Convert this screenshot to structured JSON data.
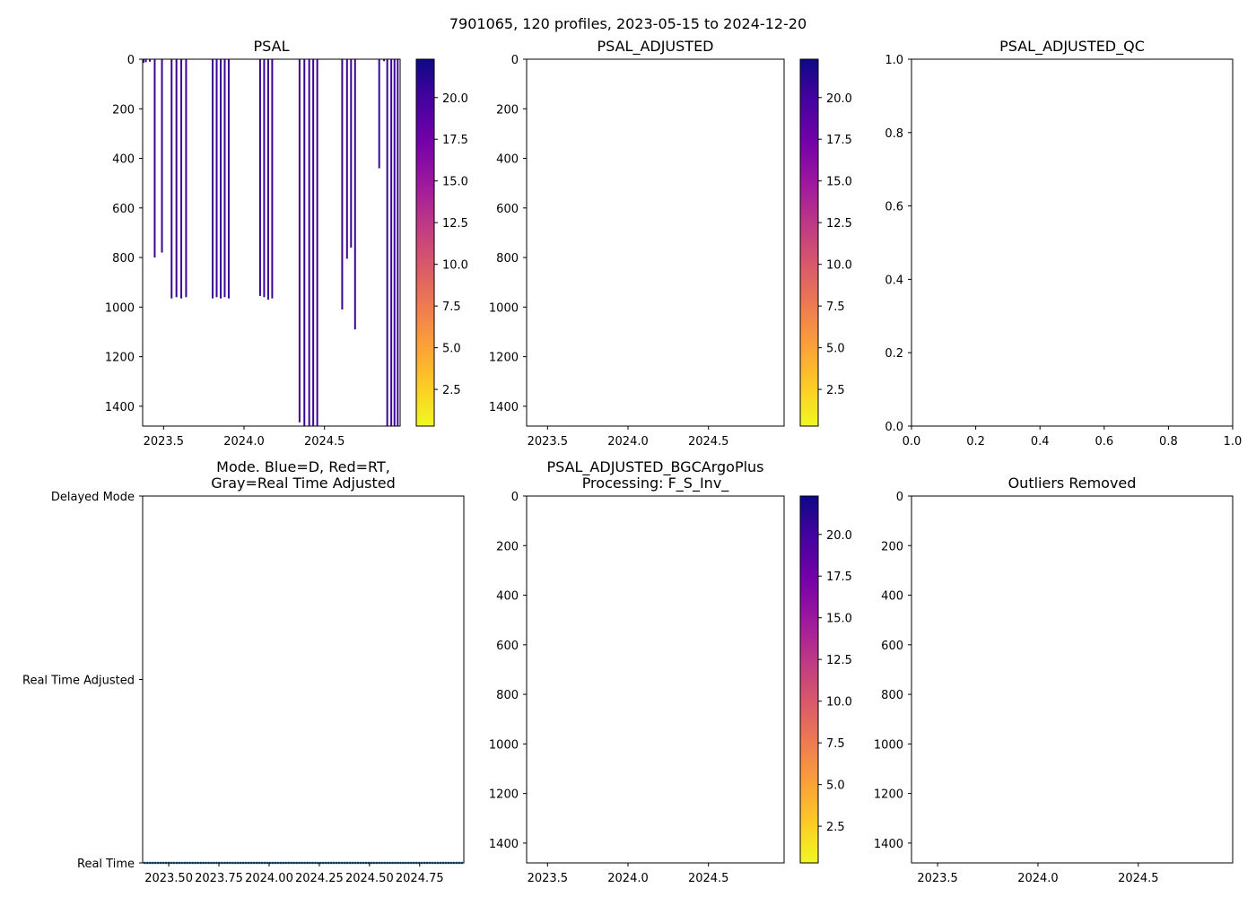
{
  "suptitle": "7901065, 120 profiles, 2023-05-15 to 2024-12-20",
  "colorbar": {
    "ticks": [
      2.5,
      5.0,
      7.5,
      10.0,
      12.5,
      15.0,
      17.5,
      20.0
    ],
    "range": [
      0.3,
      22.3
    ],
    "colormap": "plasma_r",
    "colors": [
      "#f0f921",
      "#fdca26",
      "#fb9f3a",
      "#ed7953",
      "#d8576b",
      "#bd3786",
      "#9c179e",
      "#7201a8",
      "#46039f",
      "#0d0887"
    ]
  },
  "chart_data": [
    {
      "id": "psal",
      "type": "heatmap",
      "title": "PSAL",
      "xlim": [
        2023.37,
        2024.97
      ],
      "ylim": [
        1480,
        0
      ],
      "xticks": [
        "2023.5",
        "2024.0",
        "2024.5"
      ],
      "yticks": [
        "0",
        "200",
        "400",
        "600",
        "800",
        "1000",
        "1200",
        "1400"
      ],
      "colorbar": true,
      "profile_color": "#3b0593",
      "profiles": [
        {
          "x": 2023.375,
          "depth": 15
        },
        {
          "x": 2023.39,
          "depth": 12
        },
        {
          "x": 2023.415,
          "depth": 10
        },
        {
          "x": 2023.445,
          "depth": 800
        },
        {
          "x": 2023.49,
          "depth": 780
        },
        {
          "x": 2023.55,
          "depth": 965
        },
        {
          "x": 2023.58,
          "depth": 960
        },
        {
          "x": 2023.61,
          "depth": 965
        },
        {
          "x": 2023.64,
          "depth": 960
        },
        {
          "x": 2023.805,
          "depth": 965
        },
        {
          "x": 2023.83,
          "depth": 960
        },
        {
          "x": 2023.855,
          "depth": 965
        },
        {
          "x": 2023.88,
          "depth": 960
        },
        {
          "x": 2023.905,
          "depth": 965
        },
        {
          "x": 2024.1,
          "depth": 955
        },
        {
          "x": 2024.125,
          "depth": 960
        },
        {
          "x": 2024.15,
          "depth": 970
        },
        {
          "x": 2024.175,
          "depth": 965
        },
        {
          "x": 2024.345,
          "depth": 1465
        },
        {
          "x": 2024.375,
          "depth": 1480
        },
        {
          "x": 2024.405,
          "depth": 1480
        },
        {
          "x": 2024.43,
          "depth": 1480
        },
        {
          "x": 2024.455,
          "depth": 1480
        },
        {
          "x": 2024.61,
          "depth": 1010
        },
        {
          "x": 2024.64,
          "depth": 805
        },
        {
          "x": 2024.665,
          "depth": 760
        },
        {
          "x": 2024.69,
          "depth": 1090
        },
        {
          "x": 2024.84,
          "depth": 440
        },
        {
          "x": 2024.87,
          "depth": 8
        },
        {
          "x": 2024.89,
          "depth": 1480
        },
        {
          "x": 2024.915,
          "depth": 1480
        },
        {
          "x": 2024.935,
          "depth": 1480
        },
        {
          "x": 2024.955,
          "depth": 1480
        }
      ]
    },
    {
      "id": "psal_adjusted",
      "type": "heatmap",
      "title": "PSAL_ADJUSTED",
      "xlim": [
        2023.37,
        2024.97
      ],
      "ylim": [
        1480,
        0
      ],
      "xticks": [
        "2023.5",
        "2024.0",
        "2024.5"
      ],
      "yticks": [
        "0",
        "200",
        "400",
        "600",
        "800",
        "1000",
        "1200",
        "1400"
      ],
      "colorbar": true,
      "profiles": []
    },
    {
      "id": "psal_adjusted_qc",
      "type": "scatter",
      "title": "PSAL_ADJUSTED_QC",
      "xlim": [
        0,
        1
      ],
      "ylim": [
        0,
        1
      ],
      "xticks": [
        "0.0",
        "0.2",
        "0.4",
        "0.6",
        "0.8",
        "1.0"
      ],
      "yticks": [
        "0.0",
        "0.2",
        "0.4",
        "0.6",
        "0.8",
        "1.0"
      ],
      "colorbar": false
    },
    {
      "id": "mode",
      "type": "scatter",
      "title": "Mode. Blue=D, Red=RT,",
      "title_line2": "Gray=Real Time Adjusted",
      "xlim": [
        2023.37,
        2024.97
      ],
      "ylim": [
        0,
        2
      ],
      "xticks": [
        "2023.50",
        "2023.75",
        "2024.00",
        "2024.25",
        "2024.50",
        "2024.75"
      ],
      "ycategories": [
        "Real Time",
        "Real Time Adjusted",
        "Delayed Mode"
      ],
      "colorbar": false,
      "point_color": "#1f77b4",
      "series": [
        {
          "name": "Real Time",
          "y": 0,
          "count": 120
        }
      ]
    },
    {
      "id": "bgc",
      "type": "heatmap",
      "title": "PSAL_ADJUSTED_BGCArgoPlus",
      "title_line2": "Processing: F_S_Inv_",
      "xlim": [
        2023.37,
        2024.97
      ],
      "ylim": [
        1480,
        0
      ],
      "xticks": [
        "2023.5",
        "2024.0",
        "2024.5"
      ],
      "yticks": [
        "0",
        "200",
        "400",
        "600",
        "800",
        "1000",
        "1200",
        "1400"
      ],
      "colorbar": true,
      "profiles": []
    },
    {
      "id": "outliers",
      "type": "heatmap",
      "title": "Outliers Removed",
      "xlim": [
        2023.37,
        2024.97
      ],
      "ylim": [
        1480,
        0
      ],
      "xticks": [
        "2023.5",
        "2024.0",
        "2024.5"
      ],
      "yticks": [
        "0",
        "200",
        "400",
        "600",
        "800",
        "1000",
        "1200",
        "1400"
      ],
      "colorbar": false,
      "profiles": []
    }
  ]
}
